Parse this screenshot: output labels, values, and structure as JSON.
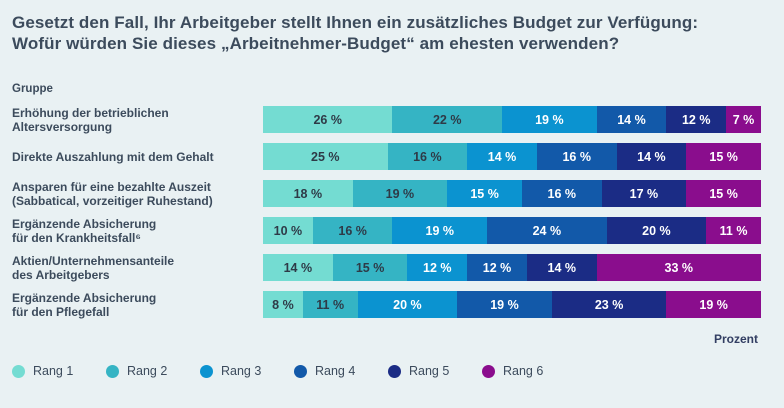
{
  "chart_data": {
    "type": "bar",
    "orientation": "horizontal-stacked",
    "title": "Gesetzt den Fall, Ihr Arbeitgeber stellt Ihnen ein zusätzliches Budget zur Verfügung:\nWofür würden Sie dieses „Arbeitnehmer-Budget“ am ehesten verwenden?",
    "group_label": "Gruppe",
    "axis_label": "Prozent",
    "value_suffix": " %",
    "xlim": [
      0,
      100
    ],
    "grid": false,
    "legend_position": "bottom",
    "categories": [
      "Erhöhung der betrieblichen\nAltersversorgung",
      "Direkte Auszahlung mit dem Gehalt",
      "Ansparen für eine bezahlte Auszeit\n(Sabbatical, vorzeitiger Ruhestand)",
      "Ergänzende Absicherung\nfür den Krankheitsfall⁶",
      "Aktien/Unternehmensanteile\ndes Arbeitgebers",
      "Ergänzende Absicherung\nfür den Pflegefall"
    ],
    "series": [
      {
        "name": "Rang 1",
        "color": "#74DCD2",
        "text_color": "#2E3A47",
        "values": [
          26,
          25,
          18,
          10,
          14,
          8
        ]
      },
      {
        "name": "Rang 2",
        "color": "#35B4C4",
        "text_color": "#2E3A47",
        "values": [
          22,
          16,
          19,
          16,
          15,
          11
        ]
      },
      {
        "name": "Rang 3",
        "color": "#0B93D0",
        "text_color": "#FFFFFF",
        "values": [
          19,
          14,
          15,
          19,
          12,
          20
        ]
      },
      {
        "name": "Rang 4",
        "color": "#1259A9",
        "text_color": "#FFFFFF",
        "values": [
          14,
          16,
          16,
          24,
          12,
          19
        ]
      },
      {
        "name": "Rang 5",
        "color": "#1B2C85",
        "text_color": "#FFFFFF",
        "values": [
          12,
          14,
          17,
          20,
          14,
          23
        ]
      },
      {
        "name": "Rang 6",
        "color": "#8A0D8D",
        "text_color": "#FFFFFF",
        "values": [
          7,
          15,
          15,
          11,
          33,
          19
        ]
      }
    ],
    "colors": {
      "background": "#E9F1F3",
      "title_text": "#3C4B5C",
      "axis_label_text": "#323E62"
    }
  }
}
